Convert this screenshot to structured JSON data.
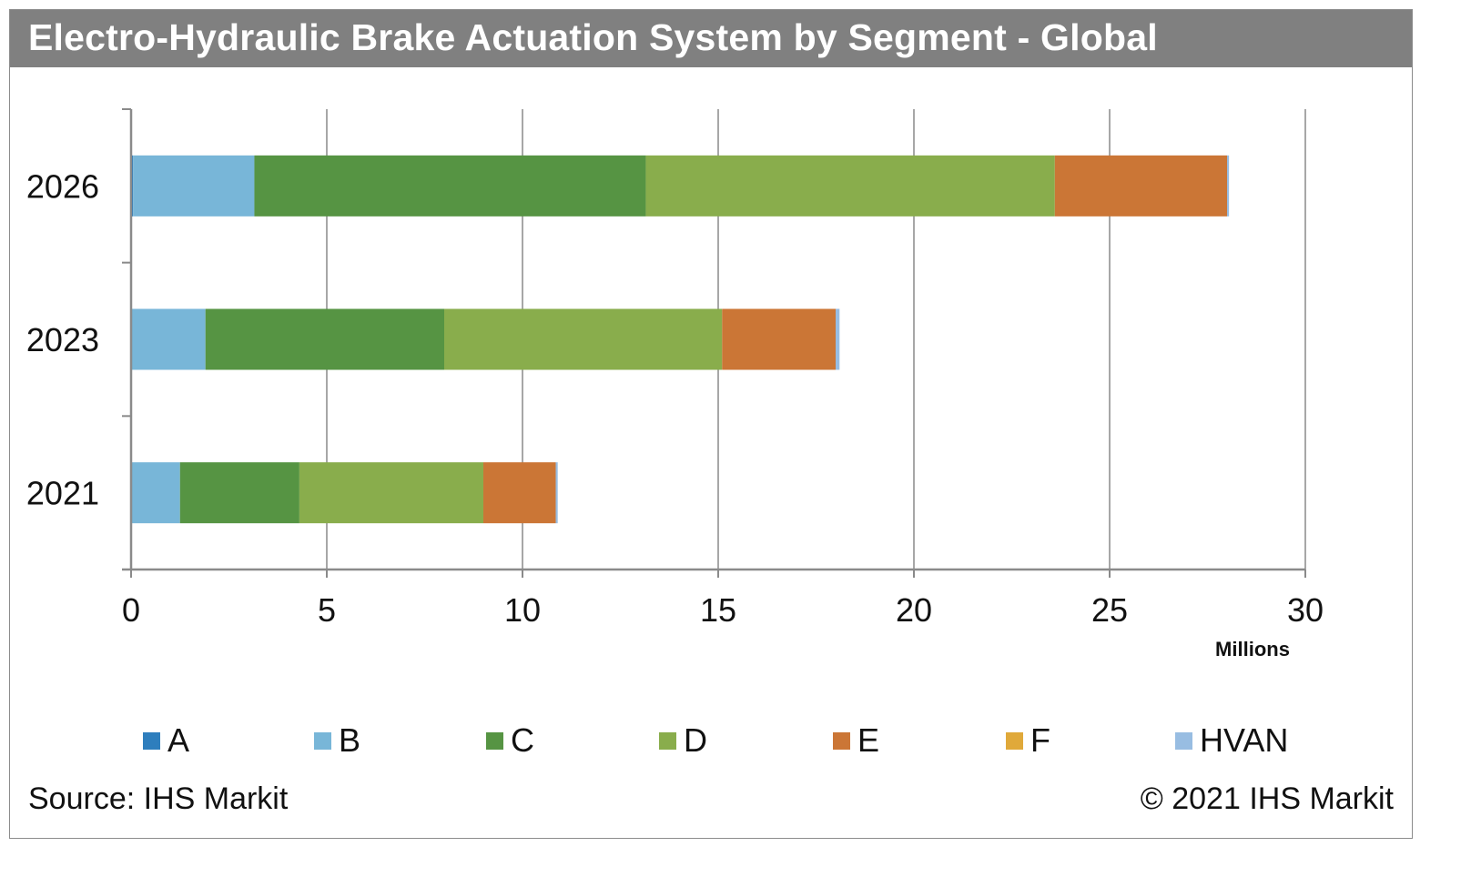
{
  "title": "Electro-Hydraulic Brake Actuation System by Segment - Global",
  "source": "Source: IHS Markit",
  "copyright": "© 2021 IHS Markit",
  "chart_data": {
    "type": "bar",
    "orientation": "horizontal",
    "stacked": true,
    "title": "Electro-Hydraulic Brake Actuation System by Segment - Global",
    "xlabel": "Millions",
    "ylabel": "",
    "xlim": [
      0,
      30
    ],
    "xticks": [
      0,
      5,
      10,
      15,
      20,
      25,
      30
    ],
    "grid": true,
    "legend_position": "bottom",
    "categories": [
      "2026",
      "2023",
      "2021"
    ],
    "series": [
      {
        "name": "A",
        "color": "#2e7ebd",
        "values": [
          0.05,
          0.0,
          0.0
        ]
      },
      {
        "name": "B",
        "color": "#78b6d8",
        "values": [
          3.1,
          1.9,
          1.25
        ]
      },
      {
        "name": "C",
        "color": "#569443",
        "values": [
          10.0,
          6.1,
          3.05
        ]
      },
      {
        "name": "D",
        "color": "#89ad4c",
        "values": [
          10.45,
          7.1,
          4.7
        ]
      },
      {
        "name": "E",
        "color": "#cb7636",
        "values": [
          4.4,
          2.9,
          1.85
        ]
      },
      {
        "name": "F",
        "color": "#e0a93a",
        "values": [
          0.0,
          0.0,
          0.0
        ]
      },
      {
        "name": "HVAN",
        "color": "#98bde2",
        "values": [
          0.05,
          0.1,
          0.05
        ]
      }
    ]
  }
}
